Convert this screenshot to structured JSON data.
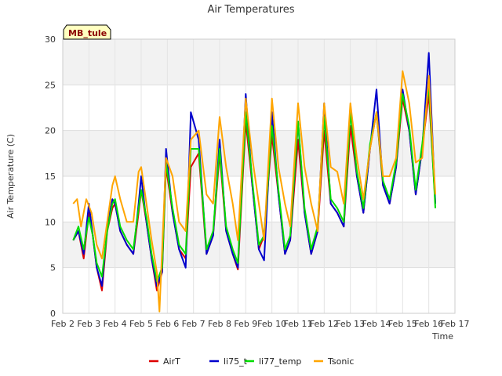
{
  "chart_data": {
    "type": "line",
    "title": "Air Temperatures",
    "xlabel": "Time",
    "ylabel": "Air Temperature (C)",
    "badge": "MB_tule",
    "xlim": [
      2,
      17
    ],
    "ylim": [
      0,
      30
    ],
    "x_ticks": [
      {
        "v": 2,
        "label": "Feb 2"
      },
      {
        "v": 3,
        "label": "Feb 3"
      },
      {
        "v": 4,
        "label": "Feb 4"
      },
      {
        "v": 5,
        "label": "Feb 5"
      },
      {
        "v": 6,
        "label": "Feb 6"
      },
      {
        "v": 7,
        "label": "Feb 7"
      },
      {
        "v": 8,
        "label": "Feb 8"
      },
      {
        "v": 9,
        "label": "Feb 9"
      },
      {
        "v": 10,
        "label": "Feb 10"
      },
      {
        "v": 11,
        "label": "Feb 11"
      },
      {
        "v": 12,
        "label": "Feb 12"
      },
      {
        "v": 13,
        "label": "Feb 13"
      },
      {
        "v": 14,
        "label": "Feb 14"
      },
      {
        "v": 15,
        "label": "Feb 15"
      },
      {
        "v": 16,
        "label": "Feb 16"
      },
      {
        "v": 17,
        "label": "Feb 17"
      }
    ],
    "y_ticks": [
      0,
      5,
      10,
      15,
      20,
      25,
      30
    ],
    "grid": true,
    "legend_position": "bottom",
    "series": [
      {
        "name": "AirT",
        "color": "#dd0000",
        "x": [
          2.4,
          2.6,
          2.8,
          3.0,
          3.15,
          3.3,
          3.5,
          3.7,
          3.9,
          4.0,
          4.2,
          4.45,
          4.7,
          4.9,
          5.0,
          5.2,
          5.4,
          5.6,
          5.8,
          5.95,
          6.2,
          6.45,
          6.7,
          6.9,
          7.2,
          7.5,
          7.75,
          8.0,
          8.25,
          8.5,
          8.7,
          9.0,
          9.25,
          9.5,
          9.7,
          10.0,
          10.25,
          10.5,
          10.7,
          11.0,
          11.25,
          11.5,
          11.75,
          12.0,
          12.25,
          12.5,
          12.75,
          13.0,
          13.25,
          13.5,
          13.75,
          14.0,
          14.25,
          14.5,
          14.75,
          15.0,
          15.25,
          15.5,
          15.75,
          16.0,
          16.25
        ],
        "values": [
          8.0,
          9.0,
          6.0,
          11.0,
          8.5,
          5.0,
          2.5,
          9.0,
          11.5,
          12.0,
          9.0,
          7.5,
          6.5,
          11.0,
          13.5,
          10.0,
          6.0,
          2.5,
          4.5,
          16.0,
          11.0,
          7.0,
          6.0,
          16.0,
          17.5,
          6.5,
          8.5,
          17.5,
          9.0,
          6.5,
          4.8,
          21.0,
          14.0,
          7.0,
          8.5,
          19.5,
          13.0,
          6.5,
          8.0,
          19.0,
          11.0,
          6.5,
          9.0,
          20.0,
          12.0,
          11.0,
          9.5,
          20.5,
          15.0,
          11.0,
          18.0,
          22.0,
          14.0,
          12.0,
          16.0,
          23.5,
          20.0,
          13.0,
          18.0,
          24.0,
          12.0
        ]
      },
      {
        "name": "li75_t",
        "color": "#0000cc",
        "x": [
          2.4,
          2.6,
          2.8,
          3.0,
          3.15,
          3.3,
          3.5,
          3.7,
          3.9,
          4.0,
          4.2,
          4.45,
          4.7,
          4.9,
          5.0,
          5.2,
          5.4,
          5.6,
          5.8,
          5.95,
          6.2,
          6.45,
          6.7,
          6.9,
          7.2,
          7.5,
          7.75,
          8.0,
          8.25,
          8.5,
          8.7,
          9.0,
          9.25,
          9.5,
          9.7,
          10.0,
          10.25,
          10.5,
          10.7,
          11.0,
          11.25,
          11.5,
          11.75,
          12.0,
          12.25,
          12.5,
          12.75,
          13.0,
          13.25,
          13.5,
          13.75,
          14.0,
          14.25,
          14.5,
          14.75,
          15.0,
          15.25,
          15.5,
          15.75,
          16.0,
          16.25
        ],
        "values": [
          8.0,
          9.0,
          6.5,
          12.0,
          8.5,
          5.0,
          3.0,
          9.5,
          12.5,
          12.0,
          9.0,
          7.5,
          6.5,
          12.0,
          15.0,
          10.0,
          6.0,
          3.0,
          4.5,
          18.0,
          11.0,
          7.0,
          5.0,
          22.0,
          19.0,
          6.5,
          8.5,
          19.0,
          9.0,
          6.5,
          5.0,
          24.0,
          14.0,
          7.0,
          5.8,
          22.0,
          13.0,
          6.5,
          8.0,
          21.0,
          11.0,
          6.5,
          9.0,
          23.0,
          12.0,
          11.0,
          9.5,
          22.5,
          15.0,
          11.0,
          18.0,
          24.5,
          14.0,
          12.0,
          16.0,
          24.5,
          20.0,
          13.0,
          18.0,
          28.5,
          12.0
        ]
      },
      {
        "name": "li77_temp",
        "color": "#00dd00",
        "x": [
          2.4,
          2.6,
          2.8,
          3.0,
          3.15,
          3.3,
          3.5,
          3.7,
          3.9,
          4.0,
          4.2,
          4.45,
          4.7,
          4.9,
          5.0,
          5.2,
          5.4,
          5.6,
          5.8,
          5.95,
          6.2,
          6.45,
          6.7,
          6.9,
          7.2,
          7.5,
          7.75,
          8.0,
          8.25,
          8.5,
          8.7,
          9.0,
          9.25,
          9.5,
          9.7,
          10.0,
          10.25,
          10.5,
          10.7,
          11.0,
          11.25,
          11.5,
          11.75,
          12.0,
          12.25,
          12.5,
          12.75,
          13.0,
          13.25,
          13.5,
          13.75,
          14.0,
          14.25,
          14.5,
          14.75,
          15.0,
          15.25,
          15.5,
          15.75,
          16.0,
          16.25
        ],
        "values": [
          8.0,
          9.5,
          7.0,
          10.5,
          8.5,
          5.5,
          4.0,
          9.0,
          12.0,
          12.5,
          9.5,
          8.0,
          7.0,
          11.5,
          13.5,
          10.5,
          6.5,
          3.5,
          5.0,
          16.5,
          11.5,
          7.5,
          6.5,
          18.0,
          18.0,
          7.0,
          9.0,
          18.0,
          9.5,
          7.0,
          5.5,
          22.0,
          14.5,
          7.5,
          8.5,
          20.5,
          13.5,
          7.0,
          8.5,
          21.0,
          11.5,
          7.0,
          9.5,
          21.5,
          12.5,
          11.5,
          10.0,
          22.0,
          15.5,
          11.5,
          18.5,
          22.0,
          14.5,
          12.5,
          16.5,
          24.0,
          20.5,
          13.5,
          18.5,
          25.0,
          11.5
        ]
      },
      {
        "name": "Tsonic",
        "color": "#ffa500",
        "x": [
          2.4,
          2.55,
          2.7,
          2.9,
          3.1,
          3.3,
          3.5,
          3.7,
          3.9,
          4.0,
          4.2,
          4.45,
          4.7,
          4.9,
          5.0,
          5.2,
          5.4,
          5.6,
          5.7,
          5.95,
          6.2,
          6.45,
          6.7,
          6.9,
          7.2,
          7.5,
          7.75,
          8.0,
          8.25,
          8.5,
          8.7,
          9.0,
          9.25,
          9.5,
          9.7,
          10.0,
          10.25,
          10.5,
          10.7,
          11.0,
          11.25,
          11.5,
          11.75,
          12.0,
          12.25,
          12.5,
          12.75,
          13.0,
          13.25,
          13.5,
          13.75,
          14.0,
          14.25,
          14.5,
          14.75,
          15.0,
          15.25,
          15.5,
          15.75,
          16.0,
          16.25
        ],
        "values": [
          12.0,
          12.5,
          9.5,
          12.5,
          11.0,
          7.5,
          6.0,
          10.0,
          14.0,
          15.0,
          12.5,
          10.0,
          10.0,
          15.5,
          16.0,
          12.0,
          8.0,
          4.5,
          0.2,
          17.0,
          15.0,
          10.0,
          9.0,
          19.0,
          20.0,
          13.0,
          12.0,
          21.5,
          16.0,
          12.0,
          8.0,
          23.5,
          17.0,
          12.0,
          8.0,
          23.5,
          16.0,
          12.0,
          9.5,
          23.0,
          16.0,
          12.0,
          9.0,
          23.0,
          16.0,
          15.5,
          12.0,
          23.0,
          17.0,
          12.5,
          18.0,
          22.0,
          15.0,
          15.0,
          17.0,
          26.5,
          23.0,
          16.5,
          17.0,
          26.0,
          13.0
        ]
      }
    ]
  }
}
